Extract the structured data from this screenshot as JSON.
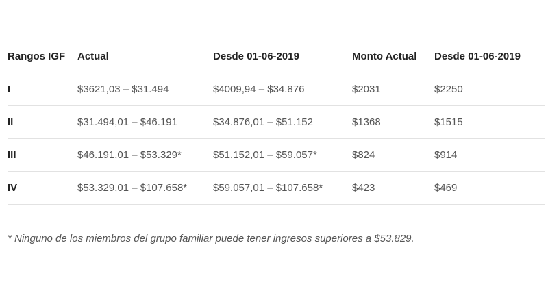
{
  "table": {
    "headers": [
      "Rangos IGF",
      "Actual",
      "Desde 01-06-2019",
      "Monto Actual",
      "Desde 01-06-2019"
    ],
    "rows": [
      [
        "I",
        "$3621,03 – $31.494",
        "$4009,94 – $34.876",
        "$2031",
        "$2250"
      ],
      [
        "II",
        "$31.494,01 – $46.191",
        "$34.876,01 – $51.152",
        "$1368",
        "$1515"
      ],
      [
        "III",
        "$46.191,01 – $53.329*",
        "$51.152,01 – $59.057*",
        "$824",
        "$914"
      ],
      [
        "IV",
        "$53.329,01 – $107.658*",
        "$59.057,01 – $107.658*",
        "$423",
        "$469"
      ]
    ]
  },
  "footnote": "* Ninguno de los miembros del grupo familiar puede tener ingresos superiores a $53.829."
}
